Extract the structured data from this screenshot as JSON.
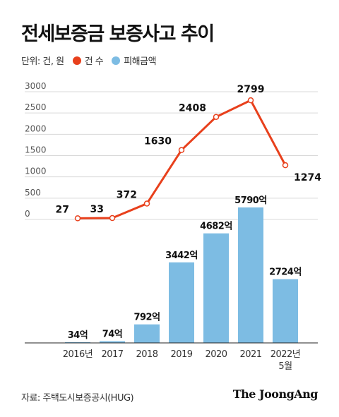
{
  "title": "전세보증금 보증사고 추이",
  "legend": {
    "unit": "단위: 건, 원",
    "items": [
      {
        "label": "건 수",
        "color": "#e8401c"
      },
      {
        "label": "피해금액",
        "color": "#7dbce3"
      }
    ]
  },
  "source": "자료: 주택도시보증공시(HUG)",
  "brand": "The JoongAng",
  "chart_data": {
    "type": "bar+line",
    "categories": [
      "2016년",
      "2017",
      "2018",
      "2019",
      "2020",
      "2021",
      "2022년|5월"
    ],
    "line": {
      "name": "건 수",
      "values": [
        27,
        33,
        372,
        1630,
        2408,
        2799,
        1274
      ],
      "labels": [
        "27",
        "33",
        "372",
        "1630",
        "2408",
        "2799",
        "1274"
      ],
      "ylim": [
        0,
        3000
      ],
      "yticks": [
        "0",
        "500",
        "1000",
        "1500",
        "2000",
        "2500",
        "3000"
      ],
      "color": "#e8401c"
    },
    "bars": {
      "name": "피해금액",
      "values": [
        34,
        74,
        792,
        3442,
        4682,
        5790,
        2724
      ],
      "labels": [
        "34억",
        "74억",
        "792억",
        "3442억",
        "4682억",
        "5790억",
        "2724억"
      ],
      "color": "#7dbce3"
    },
    "grid": true,
    "legend_position": "top-left"
  }
}
